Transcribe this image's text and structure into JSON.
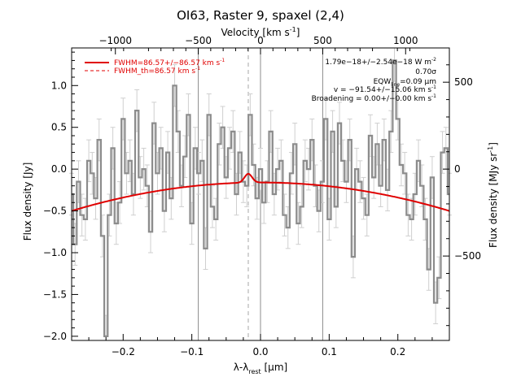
{
  "chart_data": {
    "type": "line",
    "title": "OI63, Raster 9, spaxel (2,4)",
    "xlabel": "λ-λ",
    "xlabel_sub": "rest",
    "xlabel_unit": " [μm]",
    "ylabel": "Flux density [Jy]",
    "top_xlabel": "Velocity [km s",
    "top_xlabel_sup": "-1",
    "top_xlabel_close": "]",
    "right_ylabel": "Flux density [MJy sr",
    "right_ylabel_sup": "-1",
    "right_ylabel_close": "]",
    "xlim": [
      -0.275,
      0.275
    ],
    "ylim": [
      -2.05,
      1.45
    ],
    "x_ticks": [
      -0.2,
      -0.1,
      0.0,
      0.1,
      0.2
    ],
    "x_tick_labels": [
      "−0.2",
      "−0.1",
      "0.0",
      "0.1",
      "0.2"
    ],
    "y_ticks": [
      -2.0,
      -1.5,
      -1.0,
      -0.5,
      0.0,
      0.5,
      1.0
    ],
    "y_tick_labels": [
      "−2.0",
      "−1.5",
      "−1.0",
      "−0.5",
      "0.0",
      "0.5",
      "1.0"
    ],
    "top_ticks": [
      -0.2113,
      -0.0906,
      0.0,
      0.0906,
      0.2113
    ],
    "top_tick_labels": [
      "−1000",
      "−500",
      "0",
      "500",
      "1000"
    ],
    "right_ticks": [
      -1.04,
      0.0,
      1.04
    ],
    "right_tick_labels": [
      "−500",
      "0",
      "500"
    ],
    "vlines_solid": [
      -0.0906,
      0.0,
      0.0906
    ],
    "vline_dashed": -0.0178,
    "legend": {
      "placement": "top-left",
      "items": [
        {
          "text": "FWHM=86.57+/−86.57 km s",
          "sup": "-1",
          "style": "solid"
        },
        {
          "text": "FWHM_th=86.57 km s",
          "sup": "-1",
          "style": "dashed"
        }
      ]
    },
    "annotations": [
      {
        "text": "1.79e−18+/−2.54e−18 W m",
        "sup": "-2"
      },
      {
        "text": "0.70σ"
      },
      {
        "text": "EQW",
        "sub": "line",
        "tail": "=0.09 μm"
      },
      {
        "text": "v = −91.54+/−15.06 km s",
        "sup": "-1"
      },
      {
        "text": "Broadening = 0.00+/−0.00 km s",
        "sup": "-1"
      }
    ],
    "colors": {
      "data": "#8c8c8c",
      "errorbar": "#cfcfcf",
      "model": "#e00000",
      "vline": "#8c8c8c",
      "text": "#000000"
    },
    "model": {
      "name": "FWHM=86.57+/−86.57 km s-1",
      "baseline": {
        "center": 0.0,
        "peak": -0.16,
        "curvature": 4.5
      },
      "line": {
        "center": -0.0178,
        "amplitude": 0.105,
        "sigma": 0.0055
      }
    },
    "series": [
      {
        "x": [
          -0.275,
          -0.27,
          -0.265,
          -0.26,
          -0.255,
          -0.25,
          -0.245,
          -0.24,
          -0.235,
          -0.23,
          -0.225,
          -0.22,
          -0.215,
          -0.21,
          -0.205,
          -0.2,
          -0.195,
          -0.19,
          -0.185,
          -0.18,
          -0.175,
          -0.17,
          -0.165,
          -0.16,
          -0.155,
          -0.15,
          -0.145,
          -0.14,
          -0.135,
          -0.13,
          -0.125,
          -0.12,
          -0.115,
          -0.11,
          -0.105,
          -0.1,
          -0.095,
          -0.09,
          -0.085,
          -0.08,
          -0.075,
          -0.07,
          -0.065,
          -0.06,
          -0.055,
          -0.05,
          -0.045,
          -0.04,
          -0.035,
          -0.03,
          -0.025,
          -0.02,
          -0.015,
          -0.01,
          -0.005,
          0.0,
          0.005,
          0.01,
          0.015,
          0.02,
          0.025,
          0.03,
          0.035,
          0.04,
          0.045,
          0.05,
          0.055,
          0.06,
          0.065,
          0.07,
          0.075,
          0.08,
          0.085,
          0.09,
          0.095,
          0.1,
          0.105,
          0.11,
          0.115,
          0.12,
          0.125,
          0.13,
          0.135,
          0.14,
          0.145,
          0.15,
          0.155,
          0.16,
          0.165,
          0.17,
          0.175,
          0.18,
          0.185,
          0.19,
          0.195,
          0.2,
          0.205,
          0.21,
          0.215,
          0.22,
          0.225,
          0.23,
          0.235,
          0.24,
          0.245,
          0.25,
          0.255,
          0.26,
          0.265,
          0.27,
          0.275
        ],
        "y": [
          -0.3,
          -0.9,
          -0.15,
          -0.55,
          -0.6,
          0.1,
          -0.05,
          -0.35,
          0.35,
          -0.8,
          -2.0,
          -0.55,
          0.25,
          -0.65,
          -0.4,
          0.6,
          -0.05,
          0.1,
          -0.3,
          0.7,
          -0.1,
          0.0,
          -0.2,
          -0.75,
          0.55,
          -0.05,
          0.25,
          -0.5,
          0.2,
          -0.35,
          1.0,
          0.45,
          -0.2,
          0.15,
          0.65,
          -0.65,
          0.25,
          -0.05,
          0.1,
          -0.95,
          0.65,
          -0.45,
          -0.6,
          0.3,
          0.5,
          -0.1,
          0.25,
          0.45,
          -0.3,
          0.2,
          -0.15,
          -0.2,
          0.65,
          0.05,
          -0.35,
          0.0,
          -0.4,
          -0.15,
          0.45,
          -0.3,
          0.0,
          0.1,
          -0.55,
          -0.7,
          -0.05,
          0.3,
          -0.65,
          -0.45,
          0.1,
          0.0,
          0.35,
          -0.2,
          -0.5,
          -0.15,
          0.6,
          -0.6,
          0.45,
          -0.45,
          0.55,
          0.1,
          -0.15,
          0.35,
          -1.05,
          0.0,
          -0.15,
          -0.35,
          -0.55,
          0.4,
          -0.1,
          0.3,
          -0.2,
          0.35,
          -0.25,
          0.45,
          1.3,
          0.6,
          0.05,
          -0.05,
          -0.55,
          -0.6,
          -0.3,
          0.1,
          -0.2,
          -0.6,
          -1.2,
          -0.1,
          -1.6,
          -1.3,
          0.2,
          0.25,
          -0.3
        ],
        "err": [
          0.25,
          0.25,
          0.25,
          0.25,
          0.25,
          0.25,
          0.25,
          0.25,
          0.25,
          0.25,
          0.25,
          0.25,
          0.25,
          0.25,
          0.25,
          0.25,
          0.25,
          0.25,
          0.25,
          0.25,
          0.25,
          0.25,
          0.25,
          0.25,
          0.25,
          0.25,
          0.25,
          0.25,
          0.25,
          0.25,
          0.25,
          0.25,
          0.25,
          0.25,
          0.25,
          0.25,
          0.25,
          0.25,
          0.25,
          0.25,
          0.25,
          0.25,
          0.25,
          0.25,
          0.25,
          0.25,
          0.25,
          0.25,
          0.25,
          0.25,
          0.25,
          0.25,
          0.25,
          0.25,
          0.25,
          0.25,
          0.25,
          0.25,
          0.25,
          0.25,
          0.25,
          0.25,
          0.25,
          0.25,
          0.25,
          0.25,
          0.25,
          0.25,
          0.25,
          0.25,
          0.25,
          0.25,
          0.25,
          0.25,
          0.25,
          0.25,
          0.25,
          0.25,
          0.25,
          0.25,
          0.25,
          0.25,
          0.25,
          0.25,
          0.25,
          0.25,
          0.25,
          0.25,
          0.25,
          0.25,
          0.25,
          0.25,
          0.25,
          0.25,
          0.25,
          0.25,
          0.25,
          0.25,
          0.25,
          0.25,
          0.25,
          0.25,
          0.25,
          0.25,
          0.25,
          0.25,
          0.25,
          0.25,
          0.25,
          0.25,
          0.25
        ]
      }
    ]
  }
}
